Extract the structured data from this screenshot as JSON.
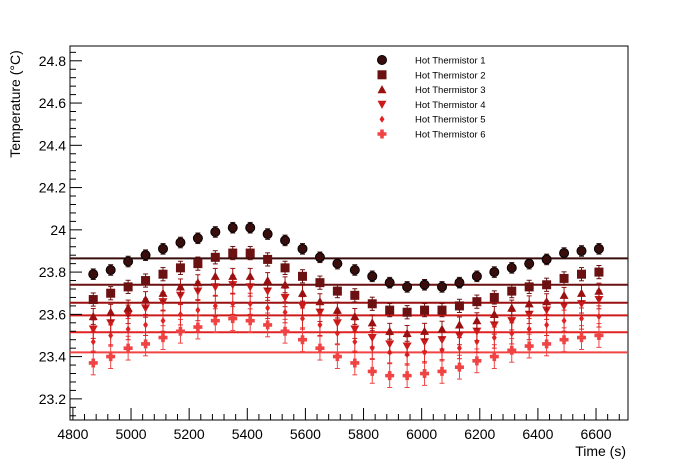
{
  "chart_data": {
    "type": "scatter",
    "xlabel": "Time (s)",
    "ylabel": "Temperature (°C)",
    "xlim": [
      4790,
      6710
    ],
    "ylim": [
      23.1,
      24.87
    ],
    "x_ticks": [
      4800,
      5000,
      5200,
      5400,
      5600,
      5800,
      6000,
      6200,
      6400,
      6600
    ],
    "y_ticks": [
      23.2,
      23.4,
      23.6,
      23.8,
      24,
      24.2,
      24.4,
      24.6,
      24.8
    ],
    "x_tick_labels": [
      "4800",
      "5000",
      "5200",
      "5400",
      "5600",
      "5800",
      "6000",
      "6200",
      "6400",
      "6600"
    ],
    "y_tick_labels": [
      "23.2",
      "23.4",
      "23.6",
      "23.8",
      "24",
      "24.2",
      "24.4",
      "24.6",
      "24.8"
    ],
    "legend_position": "top-right",
    "x": [
      4870,
      4930,
      4990,
      5050,
      5110,
      5170,
      5230,
      5290,
      5350,
      5410,
      5470,
      5530,
      5590,
      5650,
      5710,
      5770,
      5830,
      5890,
      5950,
      6010,
      6070,
      6130,
      6190,
      6250,
      6310,
      6370,
      6430,
      6490,
      6550,
      6610
    ],
    "series": [
      {
        "name": "Hot Thermistor 1",
        "marker": "circle",
        "color": "#3a0d0d",
        "values": [
          23.79,
          23.81,
          23.85,
          23.88,
          23.91,
          23.94,
          23.96,
          23.99,
          24.01,
          24.01,
          23.98,
          23.95,
          23.91,
          23.87,
          23.84,
          23.81,
          23.78,
          23.75,
          23.73,
          23.74,
          23.73,
          23.75,
          23.78,
          23.8,
          23.82,
          23.84,
          23.86,
          23.89,
          23.9,
          23.91
        ],
        "mean": 23.865
      },
      {
        "name": "Hot Thermistor 2",
        "marker": "square",
        "color": "#6b1111",
        "values": [
          23.67,
          23.7,
          23.73,
          23.76,
          23.79,
          23.82,
          23.84,
          23.87,
          23.89,
          23.89,
          23.86,
          23.82,
          23.78,
          23.75,
          23.71,
          23.69,
          23.65,
          23.62,
          23.61,
          23.62,
          23.62,
          23.64,
          23.66,
          23.68,
          23.71,
          23.73,
          23.74,
          23.77,
          23.79,
          23.8
        ],
        "mean": 23.74
      },
      {
        "name": "Hot Thermistor 3",
        "marker": "triangle-up",
        "color": "#9a1010",
        "values": [
          23.59,
          23.61,
          23.63,
          23.67,
          23.7,
          23.73,
          23.75,
          23.78,
          23.78,
          23.78,
          23.76,
          23.74,
          23.7,
          23.66,
          23.62,
          23.59,
          23.56,
          23.52,
          23.51,
          23.52,
          23.53,
          23.55,
          23.57,
          23.6,
          23.63,
          23.65,
          23.66,
          23.69,
          23.7,
          23.71
        ],
        "mean": 23.655
      },
      {
        "name": "Hot Thermistor 4",
        "marker": "triangle-down",
        "color": "#cc1a1a",
        "values": [
          23.53,
          23.56,
          23.6,
          23.63,
          23.66,
          23.69,
          23.71,
          23.73,
          23.74,
          23.73,
          23.71,
          23.68,
          23.64,
          23.61,
          23.56,
          23.53,
          23.49,
          23.46,
          23.45,
          23.47,
          23.48,
          23.5,
          23.52,
          23.55,
          23.57,
          23.6,
          23.62,
          23.64,
          23.65,
          23.67
        ],
        "mean": 23.595
      },
      {
        "name": "Hot Thermistor 5",
        "marker": "diamond",
        "color": "#e02222",
        "values": [
          23.47,
          23.5,
          23.53,
          23.55,
          23.57,
          23.6,
          23.62,
          23.64,
          23.65,
          23.65,
          23.63,
          23.61,
          23.58,
          23.55,
          23.51,
          23.47,
          23.44,
          23.42,
          23.41,
          23.42,
          23.43,
          23.44,
          23.47,
          23.49,
          23.51,
          23.53,
          23.55,
          23.57,
          23.58,
          23.59
        ],
        "mean": 23.515
      },
      {
        "name": "Hot Thermistor 6",
        "marker": "cross",
        "color": "#f04444",
        "values": [
          23.37,
          23.4,
          23.44,
          23.46,
          23.49,
          23.52,
          23.54,
          23.57,
          23.58,
          23.57,
          23.55,
          23.52,
          23.48,
          23.44,
          23.4,
          23.37,
          23.33,
          23.31,
          23.31,
          23.32,
          23.33,
          23.35,
          23.38,
          23.4,
          23.43,
          23.45,
          23.46,
          23.48,
          23.49,
          23.5
        ],
        "mean": 23.42
      }
    ],
    "error_bar": 0.025
  }
}
